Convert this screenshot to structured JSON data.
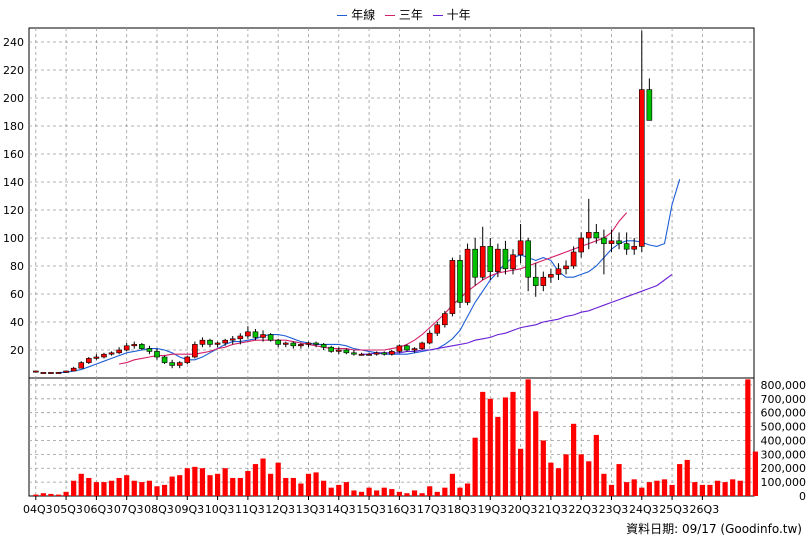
{
  "chart_data": [
    {
      "type": "candlestick",
      "title": "",
      "legend": {
        "placement": "top-center",
        "items": [
          {
            "label": "年線",
            "color": "#1f5fd6"
          },
          {
            "label": "三年",
            "color": "#d6206a"
          },
          {
            "label": "十年",
            "color": "#6a1fd6"
          }
        ]
      },
      "ylim": [
        0,
        250
      ],
      "yticks": [
        20,
        40,
        60,
        80,
        100,
        120,
        140,
        160,
        180,
        200,
        220,
        240
      ],
      "grid": true,
      "x_quarter_labels": [
        "04Q3",
        "05Q3",
        "06Q3",
        "07Q3",
        "08Q3",
        "09Q3",
        "10Q3",
        "11Q3",
        "12Q3",
        "13Q3",
        "14Q3",
        "15Q3",
        "16Q3",
        "17Q3",
        "18Q3",
        "19Q3",
        "20Q3",
        "21Q3",
        "22Q3",
        "23Q3",
        "24Q3",
        "25Q3",
        "26Q3"
      ],
      "candles_per_year": 4,
      "start_quarter": "04Q3",
      "candles": [
        [
          5,
          5,
          4,
          5
        ],
        [
          4,
          4,
          4,
          4
        ],
        [
          4,
          4,
          4,
          4
        ],
        [
          4,
          4,
          4,
          4
        ],
        [
          4,
          5,
          4,
          5
        ],
        [
          5,
          8,
          5,
          7
        ],
        [
          7,
          12,
          7,
          11
        ],
        [
          11,
          15,
          10,
          14
        ],
        [
          14,
          17,
          13,
          15
        ],
        [
          15,
          18,
          14,
          17
        ],
        [
          17,
          19,
          16,
          18
        ],
        [
          18,
          22,
          17,
          20
        ],
        [
          20,
          25,
          19,
          23
        ],
        [
          23,
          26,
          21,
          24
        ],
        [
          24,
          25,
          20,
          21
        ],
        [
          21,
          23,
          17,
          19
        ],
        [
          19,
          21,
          13,
          15
        ],
        [
          15,
          16,
          10,
          11
        ],
        [
          11,
          13,
          7,
          9
        ],
        [
          9,
          12,
          7,
          11
        ],
        [
          11,
          16,
          10,
          15
        ],
        [
          15,
          26,
          14,
          24
        ],
        [
          24,
          29,
          22,
          27
        ],
        [
          27,
          28,
          22,
          24
        ],
        [
          24,
          26,
          22,
          25
        ],
        [
          25,
          28,
          23,
          27
        ],
        [
          27,
          30,
          24,
          28
        ],
        [
          28,
          32,
          24,
          30
        ],
        [
          30,
          37,
          28,
          33
        ],
        [
          33,
          35,
          27,
          29
        ],
        [
          29,
          34,
          26,
          31
        ],
        [
          31,
          32,
          26,
          27
        ],
        [
          27,
          28,
          22,
          24
        ],
        [
          24,
          26,
          22,
          25
        ],
        [
          25,
          26,
          21,
          23
        ],
        [
          23,
          25,
          21,
          24
        ],
        [
          24,
          26,
          22,
          25
        ],
        [
          25,
          26,
          22,
          24
        ],
        [
          24,
          25,
          20,
          22
        ],
        [
          22,
          23,
          18,
          19
        ],
        [
          19,
          22,
          17,
          20
        ],
        [
          20,
          21,
          17,
          18
        ],
        [
          18,
          20,
          16,
          17
        ],
        [
          17,
          18,
          16,
          17
        ],
        [
          17,
          18,
          16,
          17
        ],
        [
          17,
          19,
          16,
          18
        ],
        [
          18,
          19,
          16,
          17
        ],
        [
          17,
          20,
          16,
          19
        ],
        [
          19,
          24,
          18,
          23
        ],
        [
          23,
          24,
          19,
          20
        ],
        [
          20,
          22,
          18,
          21
        ],
        [
          21,
          26,
          20,
          25
        ],
        [
          25,
          34,
          24,
          32
        ],
        [
          32,
          40,
          30,
          38
        ],
        [
          38,
          48,
          36,
          46
        ],
        [
          46,
          86,
          44,
          84
        ],
        [
          84,
          88,
          50,
          54
        ],
        [
          54,
          96,
          52,
          92
        ],
        [
          92,
          100,
          66,
          72
        ],
        [
          72,
          108,
          70,
          94
        ],
        [
          94,
          100,
          70,
          76
        ],
        [
          76,
          96,
          72,
          92
        ],
        [
          92,
          98,
          74,
          78
        ],
        [
          78,
          92,
          74,
          88
        ],
        [
          88,
          110,
          82,
          98
        ],
        [
          98,
          100,
          62,
          72
        ],
        [
          72,
          82,
          58,
          66
        ],
        [
          66,
          76,
          62,
          72
        ],
        [
          72,
          78,
          68,
          74
        ],
        [
          74,
          82,
          70,
          78
        ],
        [
          78,
          84,
          74,
          80
        ],
        [
          80,
          94,
          78,
          90
        ],
        [
          90,
          104,
          86,
          100
        ],
        [
          100,
          128,
          92,
          104
        ],
        [
          104,
          110,
          96,
          100
        ],
        [
          100,
          106,
          74,
          96
        ],
        [
          96,
          106,
          90,
          98
        ],
        [
          98,
          104,
          92,
          96
        ],
        [
          96,
          104,
          88,
          92
        ],
        [
          92,
          100,
          88,
          94
        ],
        [
          94,
          248,
          90,
          206
        ],
        [
          206,
          214,
          184,
          184
        ]
      ],
      "series": [
        {
          "name": "年線",
          "color": "#1f5fd6",
          "start_index": 3,
          "values": [
            4,
            4,
            5,
            6,
            8,
            10,
            12,
            14,
            16,
            18,
            19,
            20,
            21,
            21,
            20,
            18,
            15,
            13,
            13,
            15,
            18,
            21,
            24,
            26,
            26,
            27,
            28,
            30,
            31,
            31,
            30,
            28,
            26,
            25,
            24,
            24,
            24,
            24,
            23,
            21,
            20,
            19,
            18,
            17,
            17,
            17,
            17,
            18,
            19,
            20,
            21,
            24,
            28,
            34,
            44,
            54,
            62,
            70,
            76,
            82,
            86,
            88,
            86,
            84,
            86,
            84,
            76,
            72,
            72,
            74,
            76,
            80,
            86,
            92,
            96,
            98,
            98,
            97,
            95,
            94,
            96,
            124,
            142
          ]
        },
        {
          "name": "三年",
          "color": "#d6206a",
          "start_index": 11,
          "values": [
            10,
            11,
            13,
            14,
            15,
            16,
            16,
            17,
            17,
            17,
            17,
            18,
            19,
            21,
            22,
            24,
            25,
            26,
            27,
            27,
            27,
            27,
            27,
            26,
            25,
            24,
            23,
            22,
            21,
            21,
            21,
            20,
            20,
            20,
            20,
            20,
            21,
            22,
            24,
            27,
            31,
            36,
            41,
            46,
            52,
            57,
            62,
            66,
            70,
            73,
            75,
            76,
            77,
            78,
            80,
            82,
            84,
            86,
            88,
            90,
            92,
            94,
            96,
            98,
            100,
            104,
            112,
            118
          ]
        },
        {
          "name": "十年",
          "color": "#6a1fd6",
          "start_index": 43,
          "values": [
            17,
            17,
            18,
            18,
            18,
            18,
            19,
            19,
            20,
            20,
            21,
            22,
            23,
            24,
            25,
            27,
            28,
            29,
            31,
            32,
            34,
            36,
            37,
            38,
            40,
            41,
            42,
            44,
            45,
            47,
            48,
            50,
            52,
            54,
            56,
            58,
            60,
            62,
            64,
            66,
            70,
            74
          ]
        }
      ]
    },
    {
      "type": "bar",
      "ylim": [
        0,
        850000
      ],
      "yticks": [
        0,
        100000,
        200000,
        300000,
        400000,
        500000,
        600000,
        700000,
        800000
      ],
      "ytick_labels": [
        "0",
        "100,000",
        "200,000",
        "300,000",
        "400,000",
        "500,000",
        "600,000",
        "700,000",
        "800,000"
      ],
      "color": "#ff0000",
      "values": [
        10000,
        20000,
        15000,
        10000,
        30000,
        110000,
        160000,
        130000,
        100000,
        100000,
        110000,
        130000,
        150000,
        110000,
        100000,
        110000,
        70000,
        80000,
        140000,
        150000,
        200000,
        210000,
        200000,
        150000,
        160000,
        200000,
        130000,
        130000,
        180000,
        230000,
        270000,
        160000,
        240000,
        130000,
        130000,
        90000,
        160000,
        170000,
        110000,
        60000,
        80000,
        100000,
        40000,
        30000,
        60000,
        40000,
        60000,
        50000,
        30000,
        20000,
        40000,
        20000,
        70000,
        30000,
        60000,
        160000,
        60000,
        90000,
        420000,
        750000,
        700000,
        570000,
        710000,
        750000,
        340000,
        840000,
        610000,
        400000,
        240000,
        200000,
        300000,
        520000,
        300000,
        250000,
        440000,
        160000,
        80000,
        230000,
        100000,
        120000,
        60000,
        100000,
        110000,
        120000,
        80000,
        230000,
        260000,
        100000,
        80000,
        80000,
        110000,
        100000,
        120000,
        110000,
        840000,
        320000
      ]
    }
  ],
  "footer": {
    "source_text": "資料日期: 09/17 (Goodinfo.tw)"
  }
}
